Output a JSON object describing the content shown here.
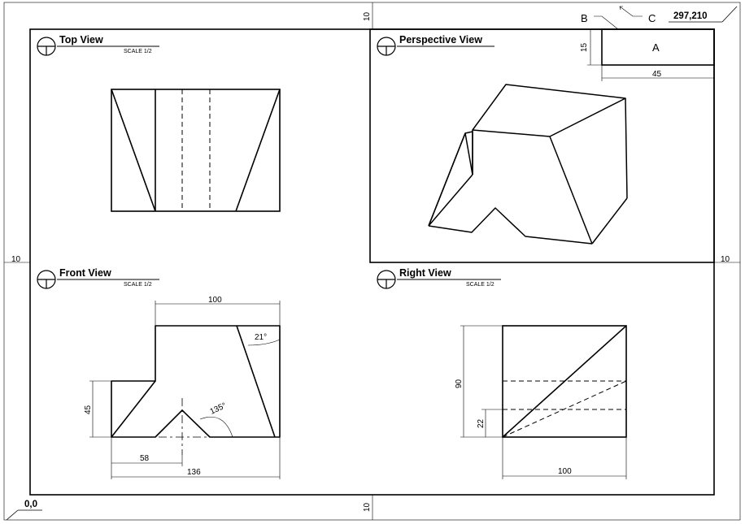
{
  "sheet": {
    "origin_label": "0,0",
    "extent_label": "297,210",
    "margin_labels": {
      "top": "10",
      "left": "10",
      "right": "10",
      "bottom": "10"
    },
    "callouts": {
      "b": "B",
      "c": "C"
    },
    "title_block": {
      "label": "A",
      "width_dim": "45",
      "height_dim": "15"
    }
  },
  "views": {
    "top": {
      "title": "Top View",
      "scale": "SCALE 1/2"
    },
    "perspective": {
      "title": "Perspective View"
    },
    "front": {
      "title": "Front View",
      "scale": "SCALE 1/2",
      "dims": {
        "width_top": "100",
        "angle_slant": "21°",
        "angle_notch": "135°",
        "height_left": "45",
        "width_notch": "58",
        "width_total": "136"
      }
    },
    "right": {
      "title": "Right View",
      "scale": "SCALE 1/2",
      "dims": {
        "height_total": "90",
        "height_small": "22",
        "width": "100"
      }
    }
  }
}
